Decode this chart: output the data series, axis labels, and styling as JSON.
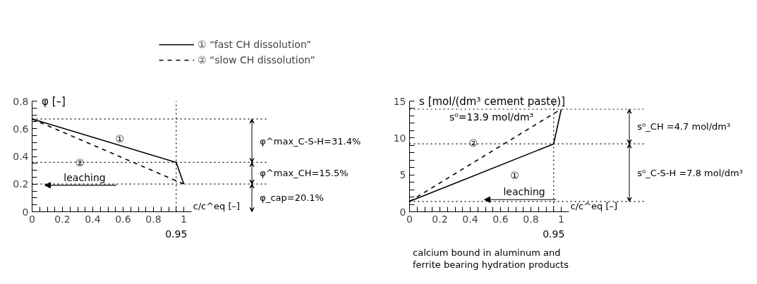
{
  "chart_data": [
    {
      "type": "line",
      "ylabel": "φ [–]",
      "xlabel": "c/c^eq [–]",
      "x": [
        0,
        0.95,
        1
      ],
      "series": [
        {
          "name": "① “fast CH dissolution”",
          "color": "#000000",
          "line_style": "solid",
          "values": [
            0.671,
            0.357,
            0.201
          ]
        },
        {
          "name": "② “slow CH dissolution”",
          "color": "#000000",
          "line_style": "dashed",
          "values": [
            0.671,
            0.224,
            0.201
          ]
        }
      ],
      "xlim": [
        0,
        1.05
      ],
      "ylim": [
        0,
        0.8
      ],
      "xticks": [
        0,
        {
          "value": 0.05,
          "label": null
        },
        {
          "value": 0.1,
          "label": null
        },
        {
          "value": 0.15,
          "label": null
        },
        0.2,
        {
          "value": 0.25,
          "label": null
        },
        {
          "value": 0.3,
          "label": null
        },
        {
          "value": 0.35,
          "label": null
        },
        0.4,
        {
          "value": 0.45,
          "label": null
        },
        {
          "value": 0.5,
          "label": null
        },
        {
          "value": 0.55,
          "label": null
        },
        0.6,
        {
          "value": 0.65,
          "label": null
        },
        {
          "value": 0.7,
          "label": null
        },
        {
          "value": 0.75,
          "label": null
        },
        0.8,
        {
          "value": 0.85,
          "label": null
        },
        {
          "value": 0.9,
          "label": null
        },
        {
          "value": 0.95,
          "label": null
        },
        1
      ],
      "yticks": [
        0,
        {
          "value": 0.05,
          "label": null
        },
        {
          "value": 0.1,
          "label": null
        },
        {
          "value": 0.15,
          "label": null
        },
        0.2,
        {
          "value": 0.25,
          "label": null
        },
        {
          "value": 0.3,
          "label": null
        },
        {
          "value": 0.35,
          "label": null
        },
        0.4,
        {
          "value": 0.45,
          "label": null
        },
        {
          "value": 0.5,
          "label": null
        },
        {
          "value": 0.55,
          "label": null
        },
        0.6,
        {
          "value": 0.65,
          "label": null
        },
        {
          "value": 0.7,
          "label": null
        },
        {
          "value": 0.75,
          "label": null
        },
        0.8
      ],
      "ref_lines": [
        {
          "axis": "x",
          "value": 0.95,
          "label": "0.95",
          "line_style": "dotted"
        },
        {
          "axis": "y",
          "value": 0.671,
          "line_style": "dotted"
        },
        {
          "axis": "y",
          "value": 0.357,
          "line_style": "dotted"
        },
        {
          "axis": "y",
          "value": 0.201,
          "line_style": "dotted"
        }
      ],
      "annotations": [
        "①",
        "②",
        "leaching",
        "φ^max_C-S-H=31.4%",
        "φ^max_CH=15.5%",
        "φ_cap=20.1%"
      ],
      "legend": "top"
    },
    {
      "type": "line",
      "ylabel": "s [mol/(dm³ cement paste)]",
      "xlabel": "c/c^eq [–]",
      "x": [
        0,
        0.95,
        1
      ],
      "series": [
        {
          "color": "#000000",
          "line_style": "solid",
          "values": [
            1.4,
            9.2,
            13.9
          ]
        },
        {
          "color": "#000000",
          "line_style": "dashed",
          "values": [
            1.4,
            13.3,
            13.9
          ]
        }
      ],
      "xlim": [
        0,
        1.05
      ],
      "ylim": [
        0,
        15
      ],
      "xticks": [
        0,
        {
          "value": 0.05,
          "label": null
        },
        {
          "value": 0.1,
          "label": null
        },
        {
          "value": 0.15,
          "label": null
        },
        0.2,
        {
          "value": 0.25,
          "label": null
        },
        {
          "value": 0.3,
          "label": null
        },
        {
          "value": 0.35,
          "label": null
        },
        0.4,
        {
          "value": 0.45,
          "label": null
        },
        {
          "value": 0.5,
          "label": null
        },
        {
          "value": 0.55,
          "label": null
        },
        0.6,
        {
          "value": 0.65,
          "label": null
        },
        {
          "value": 0.7,
          "label": null
        },
        {
          "value": 0.75,
          "label": null
        },
        0.8,
        {
          "value": 0.85,
          "label": null
        },
        {
          "value": 0.9,
          "label": null
        },
        {
          "value": 0.95,
          "label": null
        },
        1
      ],
      "yticks": [
        0,
        {
          "value": 1,
          "label": null
        },
        {
          "value": 2,
          "label": null
        },
        {
          "value": 3,
          "label": null
        },
        {
          "value": 4,
          "label": null
        },
        5,
        {
          "value": 6,
          "label": null
        },
        {
          "value": 7,
          "label": null
        },
        {
          "value": 8,
          "label": null
        },
        {
          "value": 9,
          "label": null
        },
        10,
        {
          "value": 11,
          "label": null
        },
        {
          "value": 12,
          "label": null
        },
        {
          "value": 13,
          "label": null
        },
        {
          "value": 14,
          "label": null
        },
        15
      ],
      "ref_lines": [
        {
          "axis": "x",
          "value": 0.95,
          "label": "0.95",
          "line_style": "dotted"
        },
        {
          "axis": "y",
          "value": 13.9,
          "label": "s⁰=13.9 mol/dm³",
          "line_style": "dotted"
        },
        {
          "axis": "y",
          "value": 9.2,
          "line_style": "dotted"
        },
        {
          "axis": "y",
          "value": 1.4,
          "line_style": "dotted"
        }
      ],
      "annotations": [
        "①",
        "②",
        "leaching",
        "s⁰_CH =4.7 mol/dm³",
        "s⁰_C-S-H =7.8 mol/dm³",
        "calcium bound in aluminum and",
        "ferrite bearing hydration products"
      ],
      "legend": false
    }
  ]
}
